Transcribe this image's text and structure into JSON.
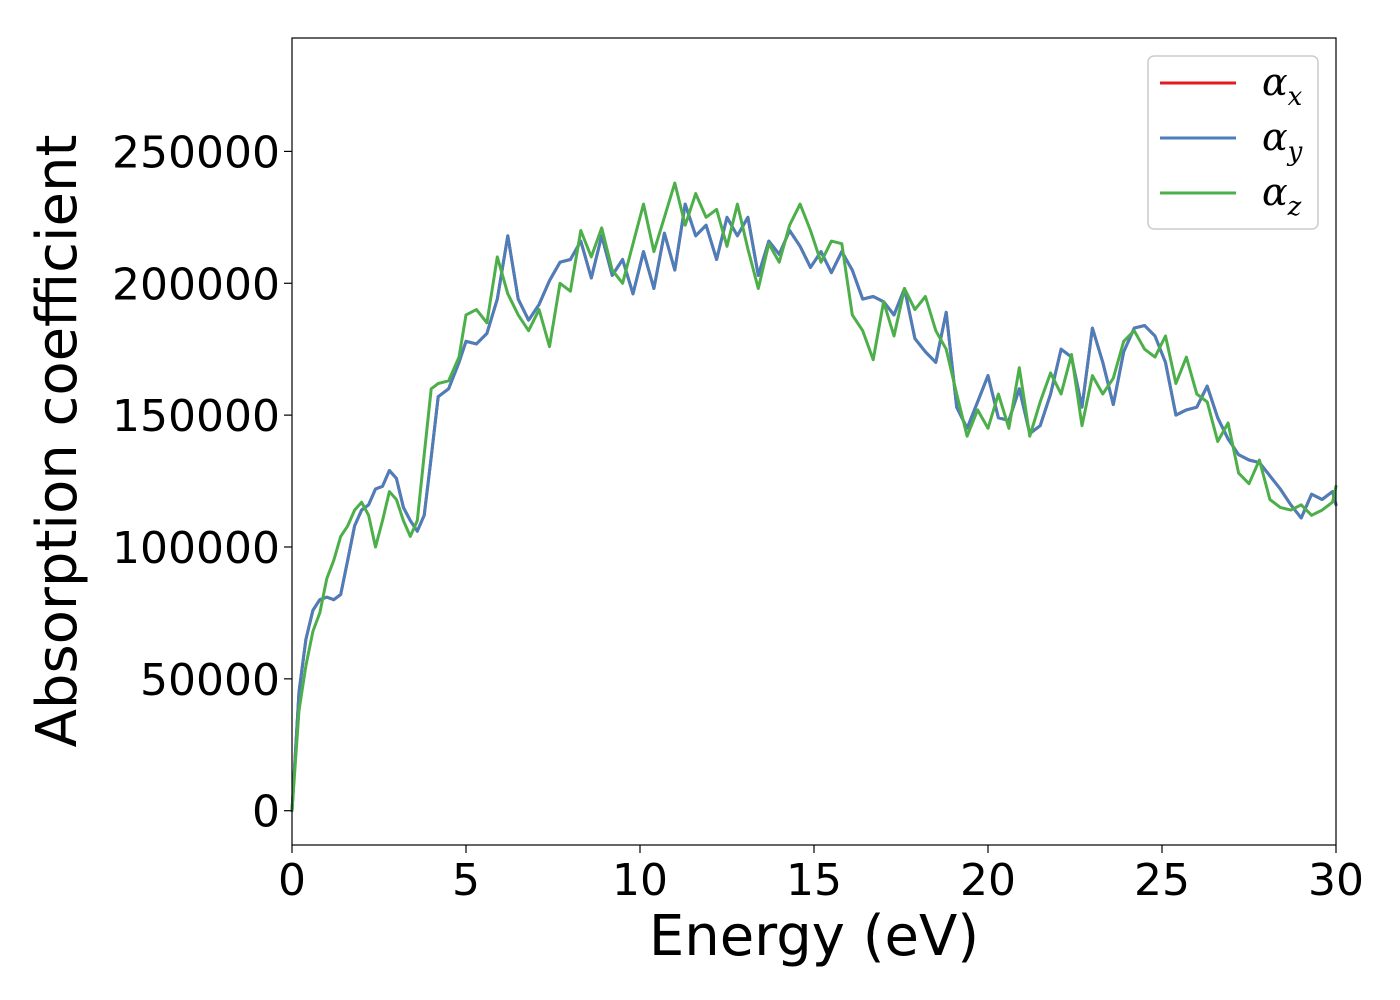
{
  "chart_data": {
    "type": "line",
    "xlabel": "Energy (eV)",
    "ylabel": "Absorption coefficient",
    "xlim": [
      0,
      30
    ],
    "ylim": [
      -13000,
      293000
    ],
    "xticks": [
      0,
      5,
      10,
      15,
      20,
      25,
      30
    ],
    "yticks": [
      0,
      50000,
      100000,
      150000,
      200000,
      250000
    ],
    "grid": false,
    "legend_position": "top-right",
    "series": [
      {
        "name": "α",
        "sub": "x",
        "color": "#e41a1c",
        "x": [
          0,
          0.2,
          0.4,
          0.6,
          0.8,
          1,
          1.2,
          1.4,
          1.6,
          1.8,
          2,
          2.2,
          2.4,
          2.6,
          2.8,
          3,
          3.2,
          3.4,
          3.6,
          3.8,
          4,
          4.2,
          4.5,
          4.8,
          5,
          5.3,
          5.6,
          5.9,
          6.2,
          6.5,
          6.8,
          7.1,
          7.4,
          7.7,
          8,
          8.3,
          8.6,
          8.9,
          9.2,
          9.5,
          9.8,
          10.1,
          10.4,
          10.7,
          11,
          11.3,
          11.6,
          11.9,
          12.2,
          12.5,
          12.8,
          13.1,
          13.4,
          13.7,
          14,
          14.3,
          14.6,
          14.9,
          15.2,
          15.5,
          15.8,
          16.1,
          16.4,
          16.7,
          17,
          17.3,
          17.6,
          17.9,
          18.2,
          18.5,
          18.8,
          19.1,
          19.4,
          19.7,
          20,
          20.3,
          20.6,
          20.9,
          21.2,
          21.5,
          21.8,
          22.1,
          22.4,
          22.7,
          23,
          23.3,
          23.6,
          23.9,
          24.2,
          24.5,
          24.8,
          25.1,
          25.4,
          25.7,
          26,
          26.3,
          26.6,
          26.9,
          27.2,
          27.5,
          27.8,
          28.1,
          28.4,
          28.7,
          29,
          29.3,
          29.6,
          29.9,
          30
        ],
        "y": [
          0,
          45000,
          65000,
          76000,
          80000,
          81000,
          80000,
          82000,
          95000,
          108000,
          114000,
          116000,
          122000,
          123000,
          129000,
          126000,
          115000,
          110000,
          106000,
          112000,
          134000,
          157000,
          160000,
          170000,
          178000,
          177000,
          181000,
          194000,
          218000,
          194000,
          186000,
          192000,
          201000,
          208000,
          209000,
          216000,
          202000,
          218000,
          203000,
          209000,
          196000,
          212000,
          198000,
          219000,
          205000,
          230000,
          218000,
          222000,
          209000,
          225000,
          218000,
          225000,
          203000,
          216000,
          211000,
          220000,
          214000,
          206000,
          212000,
          204000,
          212000,
          205000,
          194000,
          195000,
          193000,
          188000,
          198000,
          179000,
          174000,
          170000,
          189000,
          153000,
          145000,
          155000,
          165000,
          149000,
          148000,
          160000,
          143000,
          146000,
          158000,
          175000,
          172000,
          153000,
          183000,
          170000,
          154000,
          174000,
          183000,
          184000,
          180000,
          170000,
          150000,
          152000,
          153000,
          161000,
          149000,
          141000,
          135000,
          133000,
          132000,
          127000,
          122000,
          116000,
          111000,
          120000,
          118000,
          121000,
          116000
        ]
      },
      {
        "name": "α",
        "sub": "y",
        "color": "#4a7fbc",
        "x": [
          0,
          0.2,
          0.4,
          0.6,
          0.8,
          1,
          1.2,
          1.4,
          1.6,
          1.8,
          2,
          2.2,
          2.4,
          2.6,
          2.8,
          3,
          3.2,
          3.4,
          3.6,
          3.8,
          4,
          4.2,
          4.5,
          4.8,
          5,
          5.3,
          5.6,
          5.9,
          6.2,
          6.5,
          6.8,
          7.1,
          7.4,
          7.7,
          8,
          8.3,
          8.6,
          8.9,
          9.2,
          9.5,
          9.8,
          10.1,
          10.4,
          10.7,
          11,
          11.3,
          11.6,
          11.9,
          12.2,
          12.5,
          12.8,
          13.1,
          13.4,
          13.7,
          14,
          14.3,
          14.6,
          14.9,
          15.2,
          15.5,
          15.8,
          16.1,
          16.4,
          16.7,
          17,
          17.3,
          17.6,
          17.9,
          18.2,
          18.5,
          18.8,
          19.1,
          19.4,
          19.7,
          20,
          20.3,
          20.6,
          20.9,
          21.2,
          21.5,
          21.8,
          22.1,
          22.4,
          22.7,
          23,
          23.3,
          23.6,
          23.9,
          24.2,
          24.5,
          24.8,
          25.1,
          25.4,
          25.7,
          26,
          26.3,
          26.6,
          26.9,
          27.2,
          27.5,
          27.8,
          28.1,
          28.4,
          28.7,
          29,
          29.3,
          29.6,
          29.9,
          30
        ],
        "y": [
          0,
          45000,
          65000,
          76000,
          80000,
          81000,
          80000,
          82000,
          95000,
          108000,
          114000,
          116000,
          122000,
          123000,
          129000,
          126000,
          115000,
          110000,
          106000,
          112000,
          134000,
          157000,
          160000,
          170000,
          178000,
          177000,
          181000,
          194000,
          218000,
          194000,
          186000,
          192000,
          201000,
          208000,
          209000,
          216000,
          202000,
          218000,
          203000,
          209000,
          196000,
          212000,
          198000,
          219000,
          205000,
          230000,
          218000,
          222000,
          209000,
          225000,
          218000,
          225000,
          203000,
          216000,
          211000,
          220000,
          214000,
          206000,
          212000,
          204000,
          212000,
          205000,
          194000,
          195000,
          193000,
          188000,
          198000,
          179000,
          174000,
          170000,
          189000,
          153000,
          145000,
          155000,
          165000,
          149000,
          148000,
          160000,
          143000,
          146000,
          158000,
          175000,
          172000,
          153000,
          183000,
          170000,
          154000,
          174000,
          183000,
          184000,
          180000,
          170000,
          150000,
          152000,
          153000,
          161000,
          149000,
          141000,
          135000,
          133000,
          132000,
          127000,
          122000,
          116000,
          111000,
          120000,
          118000,
          121000,
          116000
        ]
      },
      {
        "name": "α",
        "sub": "z",
        "color": "#4daf4a",
        "x": [
          0,
          0.2,
          0.4,
          0.6,
          0.8,
          1,
          1.2,
          1.4,
          1.6,
          1.8,
          2,
          2.2,
          2.4,
          2.6,
          2.8,
          3,
          3.2,
          3.4,
          3.6,
          3.8,
          4,
          4.2,
          4.5,
          4.8,
          5,
          5.3,
          5.6,
          5.9,
          6.2,
          6.5,
          6.8,
          7.1,
          7.4,
          7.7,
          8,
          8.3,
          8.6,
          8.9,
          9.2,
          9.5,
          9.8,
          10.1,
          10.4,
          10.7,
          11,
          11.3,
          11.6,
          11.9,
          12.2,
          12.5,
          12.8,
          13.1,
          13.4,
          13.7,
          14,
          14.3,
          14.6,
          14.9,
          15.2,
          15.5,
          15.8,
          16.1,
          16.4,
          16.7,
          17,
          17.3,
          17.6,
          17.9,
          18.2,
          18.5,
          18.8,
          19.1,
          19.4,
          19.7,
          20,
          20.3,
          20.6,
          20.9,
          21.2,
          21.5,
          21.8,
          22.1,
          22.4,
          22.7,
          23,
          23.3,
          23.6,
          23.9,
          24.2,
          24.5,
          24.8,
          25.1,
          25.4,
          25.7,
          26,
          26.3,
          26.6,
          26.9,
          27.2,
          27.5,
          27.8,
          28.1,
          28.4,
          28.7,
          29,
          29.3,
          29.6,
          29.9,
          30
        ],
        "y": [
          0,
          38000,
          55000,
          68000,
          75000,
          88000,
          95000,
          104000,
          108000,
          114000,
          117000,
          112000,
          100000,
          110000,
          121000,
          118000,
          110000,
          104000,
          110000,
          135000,
          160000,
          162000,
          163000,
          172000,
          188000,
          190000,
          185000,
          210000,
          196000,
          188000,
          182000,
          190000,
          176000,
          200000,
          197000,
          220000,
          210000,
          221000,
          205000,
          200000,
          215000,
          230000,
          212000,
          225000,
          238000,
          222000,
          234000,
          225000,
          228000,
          214000,
          230000,
          213000,
          198000,
          215000,
          208000,
          222000,
          230000,
          220000,
          208000,
          216000,
          215000,
          188000,
          182000,
          171000,
          193000,
          180000,
          198000,
          190000,
          195000,
          182000,
          175000,
          158000,
          142000,
          152000,
          145000,
          158000,
          145000,
          168000,
          142000,
          155000,
          166000,
          158000,
          173000,
          146000,
          165000,
          158000,
          164000,
          178000,
          182000,
          175000,
          172000,
          180000,
          162000,
          172000,
          158000,
          155000,
          140000,
          147000,
          128000,
          124000,
          133000,
          118000,
          115000,
          114000,
          116000,
          112000,
          114000,
          117000,
          123000
        ]
      }
    ]
  }
}
